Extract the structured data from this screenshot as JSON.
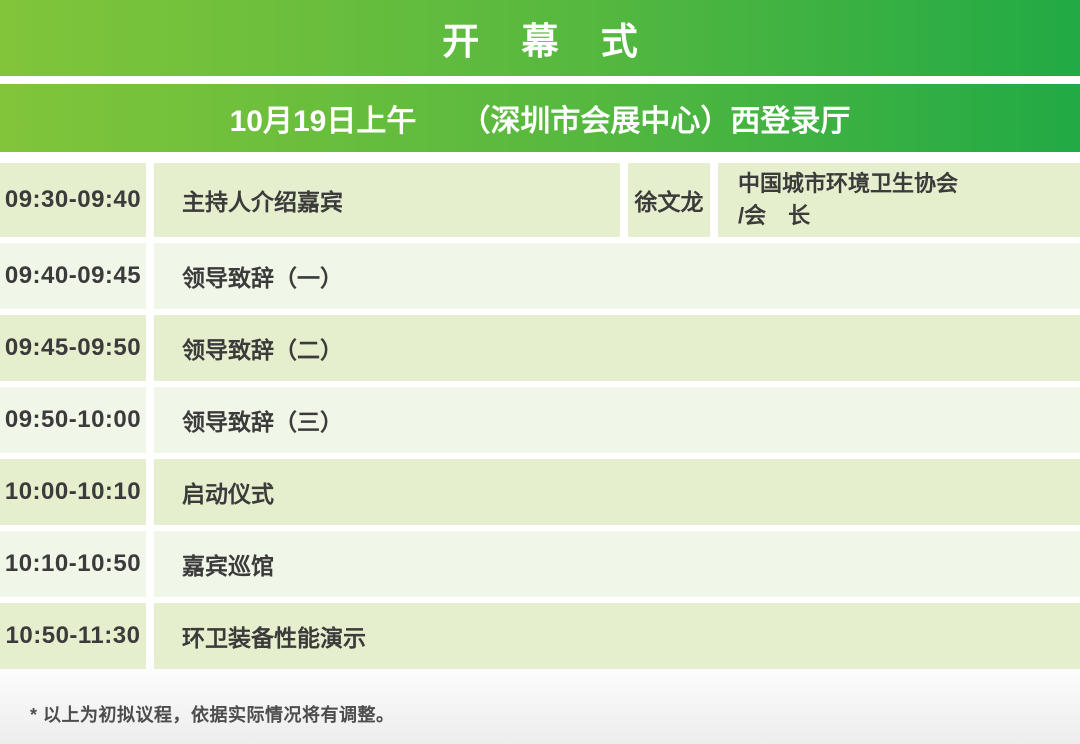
{
  "header": {
    "title": "开 幕 式"
  },
  "subheader": {
    "session": "10月19日上午",
    "venue": "（深圳市会展中心）西登录厅"
  },
  "schedule": {
    "rows": [
      {
        "time": "09:30-09:40",
        "event": "主持人介绍嘉宾",
        "speaker": "徐文龙",
        "org": "中国城市环境卫生协会",
        "role": "/会　长"
      },
      {
        "time": "09:40-09:45",
        "event": "领导致辞（一）"
      },
      {
        "time": "09:45-09:50",
        "event": "领导致辞（二）"
      },
      {
        "time": "09:50-10:00",
        "event": "领导致辞（三）"
      },
      {
        "time": "10:00-10:10",
        "event": "启动仪式"
      },
      {
        "time": "10:10-10:50",
        "event": "嘉宾巡馆"
      },
      {
        "time": "10:50-11:30",
        "event": "环卫装备性能演示"
      }
    ]
  },
  "footnote": "* 以上为初拟议程，依据实际情况将有调整。",
  "colors": {
    "banner_gradient_start": "#81c53a",
    "banner_gradient_end": "#21aa45",
    "row_shade_dark": "#e5eecd",
    "row_shade_light": "#f0f7e8",
    "banner_text": "#ffffff",
    "body_text": "#3b3b3b",
    "footnote_text": "#4d4d4d"
  }
}
